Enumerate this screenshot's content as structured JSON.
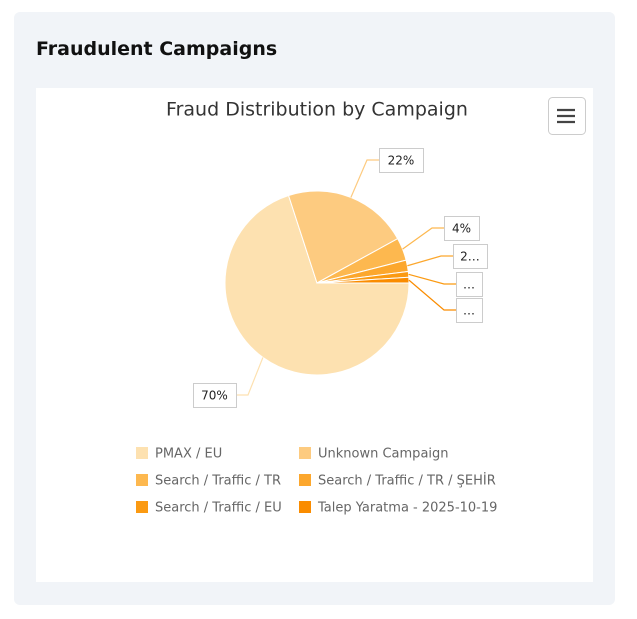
{
  "header": {
    "title": "Fraudulent Campaigns"
  },
  "chart_data": {
    "type": "pie",
    "title": "Fraud Distribution by Campaign",
    "categories": [
      "PMAX / EU",
      "Unknown Campaign",
      "Search / Traffic / TR",
      "Search / Traffic / TR / ŞEHİR",
      "Search / Traffic / EU",
      "Talep Yaratma - 2025-10-19"
    ],
    "values": [
      70,
      22,
      4,
      2,
      1,
      1
    ],
    "value_labels": [
      "70%",
      "22%",
      "4%",
      "2…",
      "…",
      "…"
    ],
    "colors": [
      "#fde1b0",
      "#fdcb80",
      "#fdb84f",
      "#fca72d",
      "#fb9a12",
      "#fa8c00"
    ],
    "legend": "bottom"
  }
}
